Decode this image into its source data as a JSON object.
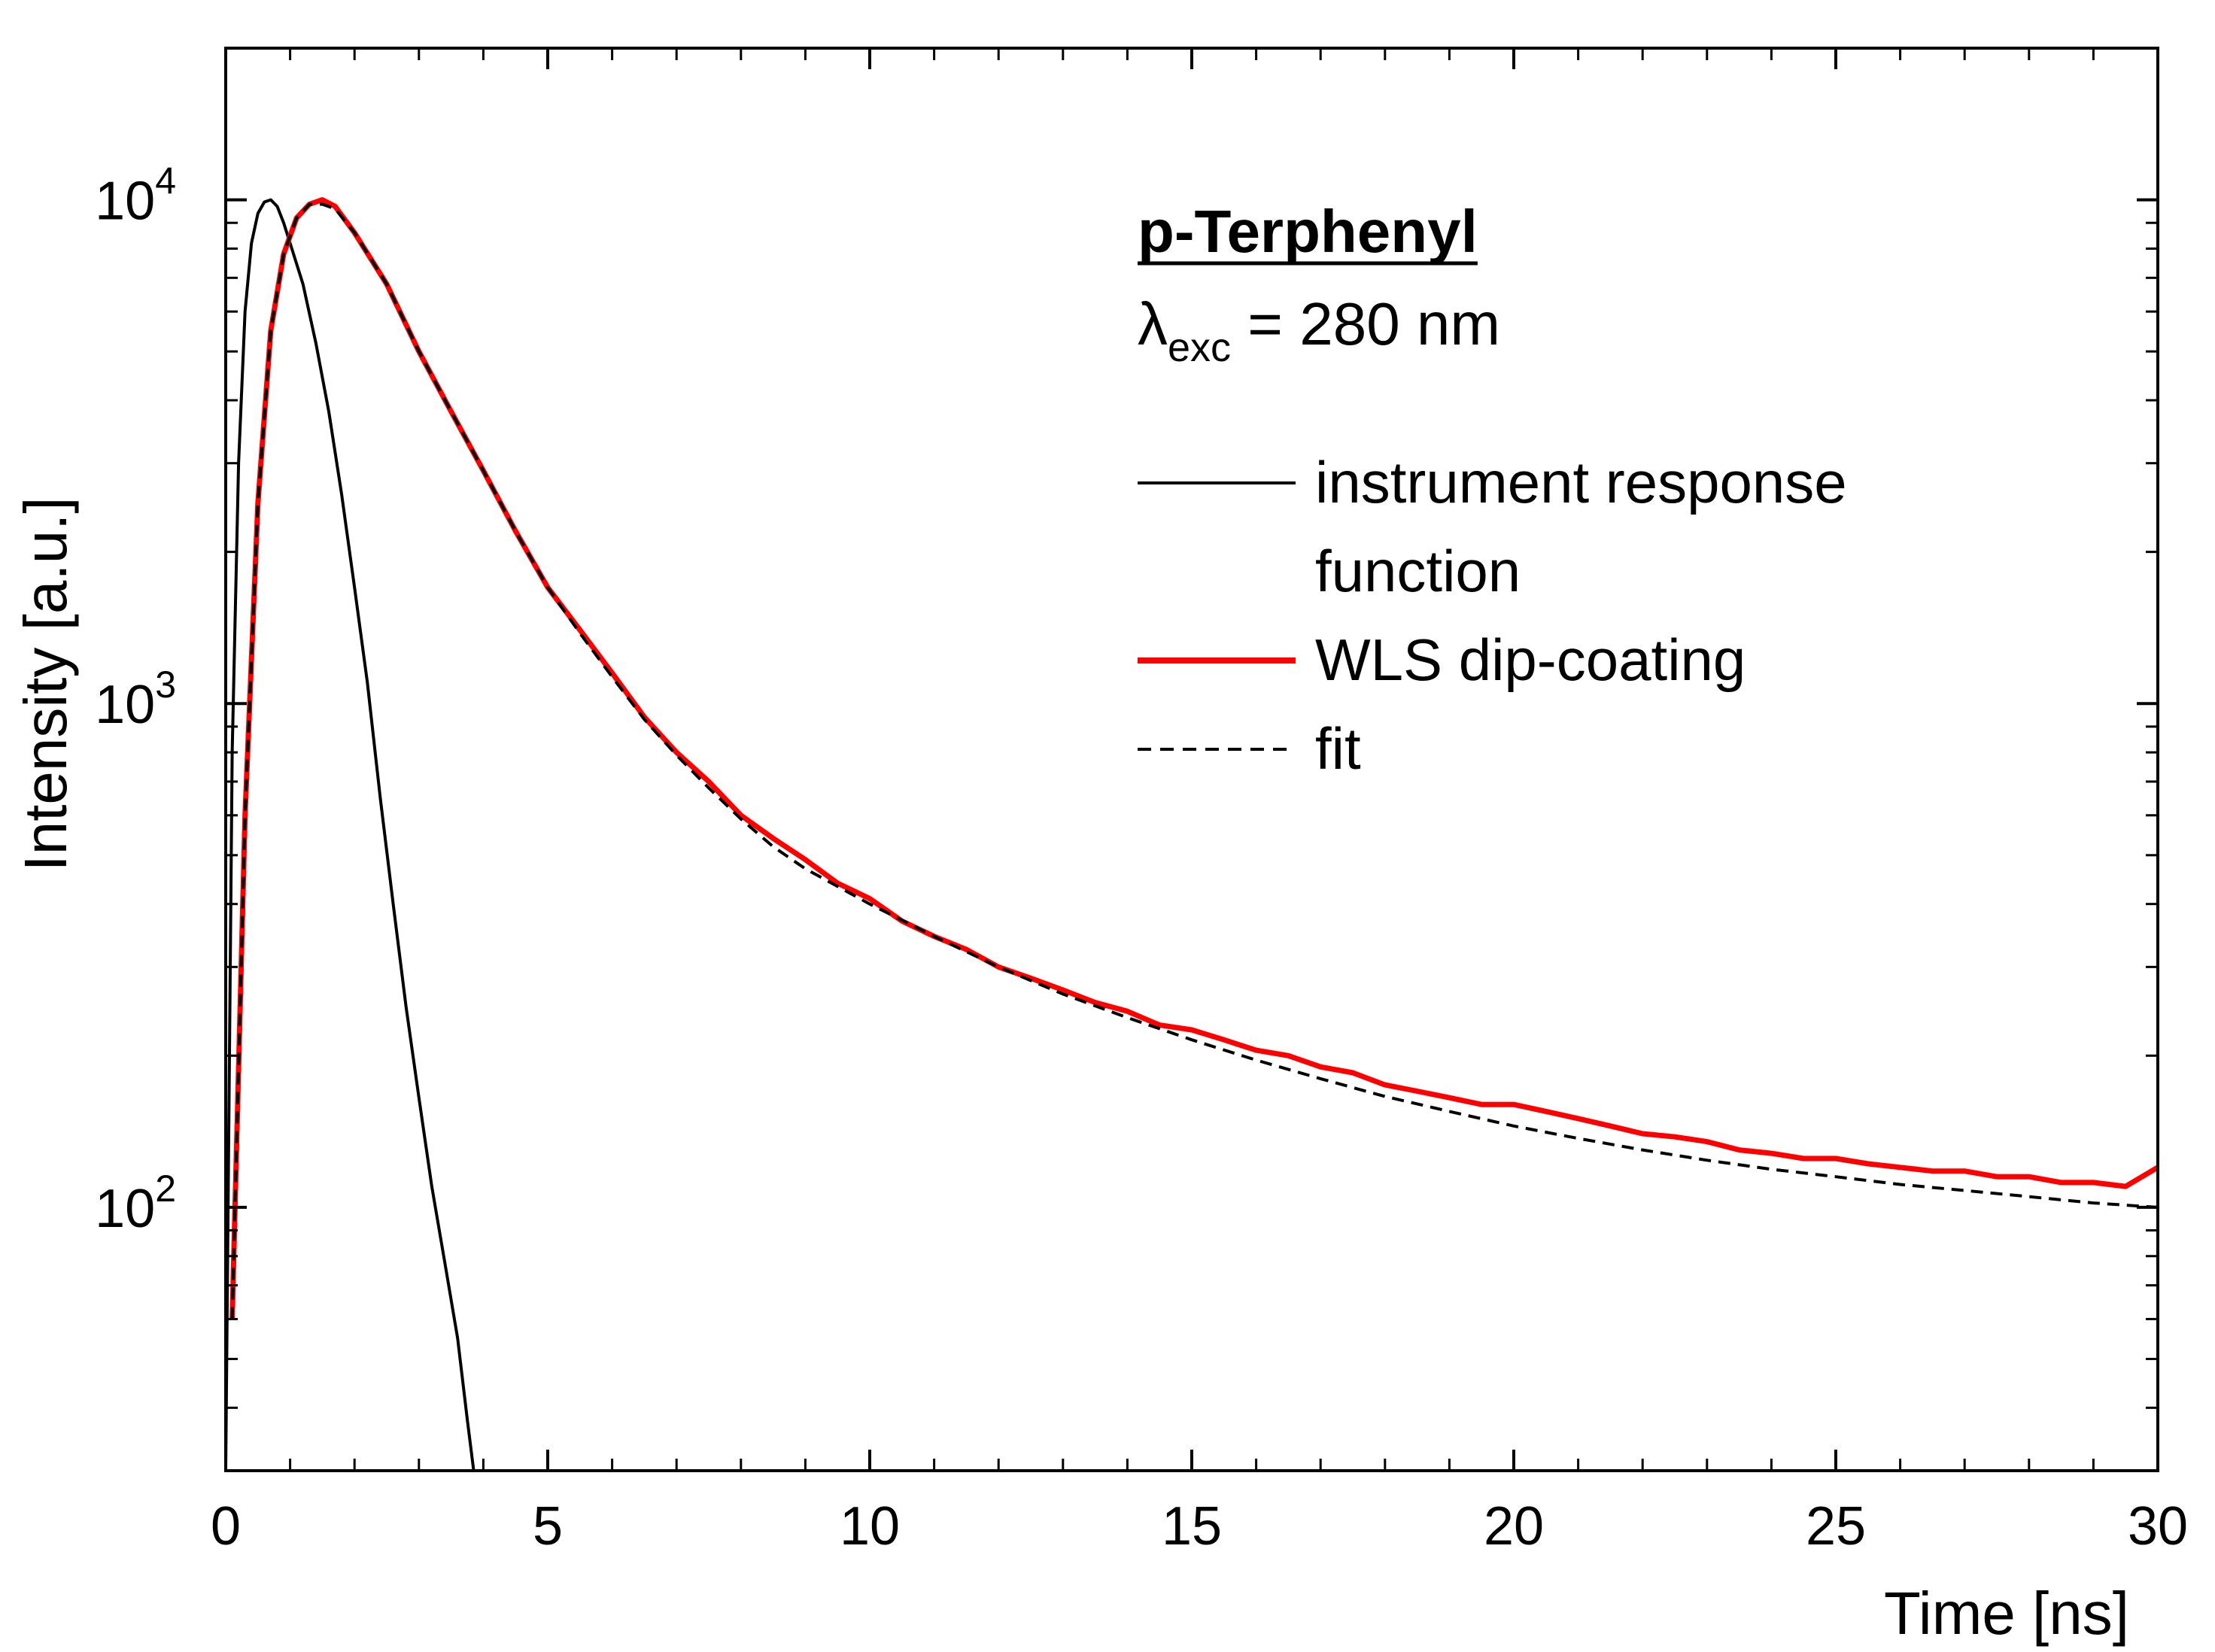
{
  "chart_data": {
    "type": "line",
    "xlabel": "Time [ns]",
    "ylabel": "Intensity [a.u.]",
    "xlim": [
      0,
      30
    ],
    "ylim": [
      30,
      20000
    ],
    "yscale": "log",
    "x_ticks": [
      0,
      5,
      10,
      15,
      20,
      25,
      30
    ],
    "x_tick_labels": [
      "0",
      "5",
      "10",
      "15",
      "20",
      "25",
      "30"
    ],
    "y_major_ticks": [
      {
        "value": 100,
        "base": "10",
        "exp": "2"
      },
      {
        "value": 1000,
        "base": "10",
        "exp": "3"
      },
      {
        "value": 10000,
        "base": "10",
        "exp": "4"
      }
    ],
    "grid": false,
    "legend_position": "top-right",
    "annotation": {
      "title": "p-Terphenyl",
      "lambda_symbol": "λ",
      "lambda_subscript": "exc",
      "lambda_value": " = 280 nm"
    },
    "series": [
      {
        "name": "instrument response function",
        "legend_lines": [
          "instrument response",
          "function"
        ],
        "color": "#000000",
        "style": "solid",
        "x": [
          0.0,
          0.1,
          0.2,
          0.3,
          0.4,
          0.5,
          0.6,
          0.7,
          0.8,
          0.9,
          1.0,
          1.2,
          1.4,
          1.6,
          1.8,
          2.0,
          2.2,
          2.4,
          2.6,
          2.8,
          3.0,
          3.2,
          3.4,
          3.6,
          3.75,
          3.85
        ],
        "y": [
          30,
          800,
          3000,
          6000,
          8200,
          9400,
          9900,
          10000,
          9700,
          9000,
          8200,
          6800,
          5200,
          3800,
          2600,
          1700,
          1100,
          650,
          400,
          250,
          165,
          110,
          78,
          55,
          38,
          30
        ]
      },
      {
        "name": "WLS dip-coating",
        "legend_lines": [
          "WLS dip-coating"
        ],
        "color": "#ff0000",
        "style": "solid",
        "x": [
          0.1,
          0.3,
          0.5,
          0.7,
          0.9,
          1.1,
          1.3,
          1.5,
          1.7,
          2.0,
          2.5,
          3.0,
          3.5,
          4.0,
          4.5,
          5.0,
          5.5,
          6.0,
          6.5,
          7.0,
          7.5,
          8.0,
          8.5,
          9.0,
          9.5,
          10.0,
          10.5,
          11.0,
          11.5,
          12.0,
          12.5,
          13.0,
          13.5,
          14.0,
          14.5,
          15.0,
          15.5,
          16.0,
          16.5,
          17.0,
          17.5,
          18.0,
          18.5,
          19.0,
          19.5,
          20.0,
          20.5,
          21.0,
          21.5,
          22.0,
          22.5,
          23.0,
          23.5,
          24.0,
          24.5,
          25.0,
          25.5,
          26.0,
          26.5,
          27.0,
          27.5,
          28.0,
          28.5,
          29.0,
          29.5,
          30.0
        ],
        "y": [
          60,
          600,
          2500,
          5500,
          7800,
          9200,
          9800,
          10000,
          9700,
          8600,
          6800,
          5000,
          3800,
          2900,
          2200,
          1700,
          1400,
          1150,
          940,
          800,
          700,
          600,
          540,
          490,
          440,
          410,
          370,
          345,
          325,
          300,
          285,
          270,
          255,
          245,
          230,
          225,
          215,
          205,
          200,
          190,
          185,
          175,
          170,
          165,
          160,
          160,
          155,
          150,
          145,
          140,
          138,
          135,
          130,
          128,
          125,
          125,
          122,
          120,
          118,
          118,
          115,
          115,
          112,
          112,
          110,
          120
        ]
      },
      {
        "name": "fit",
        "legend_lines": [
          "fit"
        ],
        "color": "#000000",
        "style": "dashed",
        "x": [
          0.1,
          0.3,
          0.5,
          0.7,
          0.9,
          1.1,
          1.3,
          1.5,
          1.7,
          2.0,
          2.5,
          3.0,
          3.5,
          4.0,
          4.5,
          5.0,
          5.5,
          6.0,
          6.5,
          7.0,
          7.5,
          8.0,
          8.5,
          9.0,
          10.0,
          11.0,
          12.0,
          13.0,
          14.0,
          15.0,
          16.0,
          17.0,
          18.0,
          19.0,
          20.0,
          21.0,
          22.0,
          23.0,
          24.0,
          25.0,
          26.0,
          27.0,
          28.0,
          29.0,
          30.0
        ],
        "y": [
          60,
          600,
          2500,
          5500,
          7800,
          9200,
          9800,
          9800,
          9600,
          8600,
          6800,
          5000,
          3800,
          2900,
          2200,
          1700,
          1380,
          1130,
          930,
          790,
          680,
          590,
          520,
          470,
          400,
          345,
          300,
          265,
          238,
          215,
          196,
          180,
          166,
          155,
          145,
          137,
          130,
          124,
          119,
          115,
          111,
          108,
          105,
          102,
          100
        ]
      }
    ]
  }
}
